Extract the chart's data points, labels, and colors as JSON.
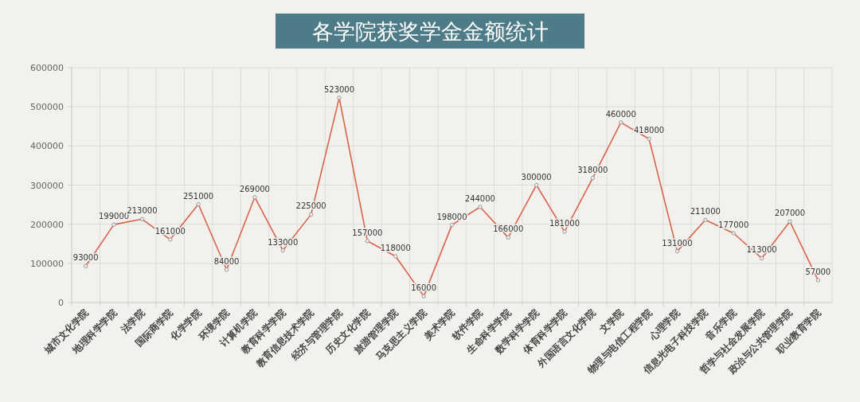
{
  "chart_data": {
    "type": "line",
    "title": "各学院获奖学金金额统计",
    "categories": [
      "城市文化学院",
      "地理科学学院",
      "法学院",
      "国际商学院",
      "化学学院",
      "环境学院",
      "计算机学院",
      "教育科学学院",
      "教育信息技术学院",
      "经济与管理学院",
      "历史文化学院",
      "旅游管理学院",
      "马克思主义学院",
      "美术学院",
      "软件学院",
      "生命科学学院",
      "数学科学学院",
      "体育科学学院",
      "外国语言文化学院",
      "文学院",
      "物理与电信工程学院",
      "心理学院",
      "信息光电子科技学院",
      "音乐学院",
      "哲学与社会发展学院",
      "政治与公共管理学院",
      "职业教育学院"
    ],
    "values": [
      93000,
      199000,
      213000,
      161000,
      251000,
      84000,
      269000,
      133000,
      225000,
      523000,
      157000,
      118000,
      16000,
      198000,
      244000,
      166000,
      300000,
      181000,
      318000,
      460000,
      418000,
      131000,
      211000,
      177000,
      113000,
      207000,
      57000
    ],
    "color": "#d9644a",
    "ylim": [
      0,
      600000
    ],
    "yticks": [
      0,
      100000,
      200000,
      300000,
      400000,
      500000,
      600000
    ],
    "grid": true,
    "data_labels": true,
    "marker": "circle"
  }
}
